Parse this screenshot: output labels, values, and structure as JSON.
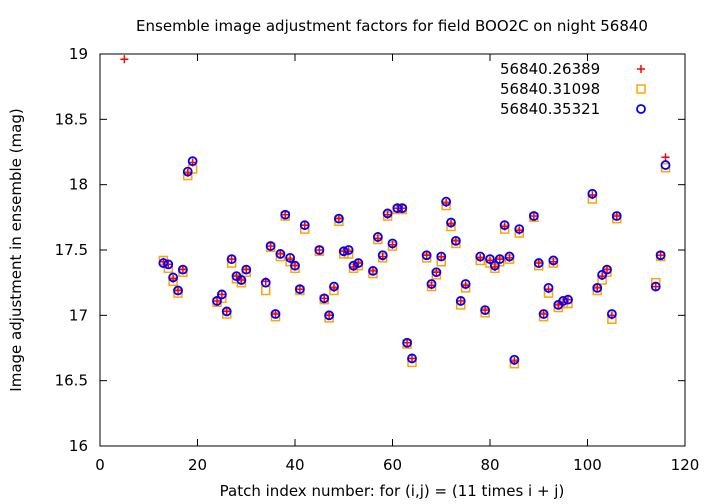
{
  "chart_data": {
    "type": "scatter",
    "title": "Ensemble image adjustment factors for field BOO2C on night 56840",
    "xlabel": "Patch index number: for (i,j) =  (11 times i + j)",
    "ylabel": "Image adjustment in ensemble (mag)",
    "xlim": [
      0,
      120
    ],
    "ylim": [
      16,
      19
    ],
    "x_ticks": [
      0,
      20,
      40,
      60,
      80,
      100,
      120
    ],
    "x_tick_labels": [
      "0",
      "20",
      "40",
      "60",
      "80",
      "100",
      "120"
    ],
    "y_ticks": [
      16,
      16.5,
      17,
      17.5,
      18,
      18.5,
      19
    ],
    "y_tick_labels": [
      "16",
      "16.5",
      "17",
      "17.5",
      "18",
      "18.5",
      "19"
    ],
    "grid": false,
    "legend_position": "top-right",
    "series": [
      {
        "name": "56840.26389",
        "marker": "plus",
        "color": "#ff0000",
        "points": [
          [
            5,
            18.96
          ],
          [
            13,
            17.41
          ],
          [
            14,
            17.39
          ],
          [
            15,
            17.28
          ],
          [
            16,
            17.19
          ],
          [
            17,
            17.35
          ],
          [
            18,
            18.09
          ],
          [
            19,
            18.17
          ],
          [
            24,
            17.11
          ],
          [
            25,
            17.16
          ],
          [
            26,
            17.03
          ],
          [
            27,
            17.43
          ],
          [
            28,
            17.3
          ],
          [
            29,
            17.27
          ],
          [
            30,
            17.35
          ],
          [
            34,
            17.26
          ],
          [
            35,
            17.53
          ],
          [
            36,
            17.01
          ],
          [
            37,
            17.47
          ],
          [
            38,
            17.77
          ],
          [
            39,
            17.43
          ],
          [
            40,
            17.38
          ],
          [
            41,
            17.2
          ],
          [
            42,
            17.69
          ],
          [
            45,
            17.5
          ],
          [
            46,
            17.13
          ],
          [
            47,
            17.0
          ],
          [
            48,
            17.21
          ],
          [
            49,
            17.74
          ],
          [
            50,
            17.49
          ],
          [
            51,
            17.49
          ],
          [
            52,
            17.37
          ],
          [
            53,
            17.4
          ],
          [
            56,
            17.34
          ],
          [
            57,
            17.59
          ],
          [
            58,
            17.45
          ],
          [
            59,
            17.77
          ],
          [
            60,
            17.54
          ],
          [
            61,
            17.82
          ],
          [
            62,
            17.82
          ],
          [
            63,
            16.79
          ],
          [
            64,
            16.67
          ],
          [
            67,
            17.46
          ],
          [
            68,
            17.23
          ],
          [
            69,
            17.33
          ],
          [
            70,
            17.45
          ],
          [
            71,
            17.86
          ],
          [
            72,
            17.7
          ],
          [
            73,
            17.57
          ],
          [
            74,
            17.11
          ],
          [
            75,
            17.23
          ],
          [
            78,
            17.44
          ],
          [
            79,
            17.04
          ],
          [
            80,
            17.42
          ],
          [
            81,
            17.37
          ],
          [
            82,
            17.43
          ],
          [
            83,
            17.68
          ],
          [
            84,
            17.44
          ],
          [
            85,
            16.65
          ],
          [
            86,
            17.65
          ],
          [
            89,
            17.76
          ],
          [
            90,
            17.4
          ],
          [
            91,
            17.01
          ],
          [
            92,
            17.2
          ],
          [
            93,
            17.41
          ],
          [
            94,
            17.08
          ],
          [
            95,
            17.1
          ],
          [
            96,
            17.12
          ],
          [
            101,
            17.92
          ],
          [
            102,
            17.21
          ],
          [
            103,
            17.3
          ],
          [
            104,
            17.35
          ],
          [
            105,
            17.0
          ],
          [
            106,
            17.76
          ],
          [
            114,
            17.22
          ],
          [
            115,
            17.46
          ],
          [
            116,
            18.21
          ]
        ]
      },
      {
        "name": "56840.31098",
        "marker": "square",
        "color": "#ffa500",
        "points": [
          [
            13,
            17.42
          ],
          [
            14,
            17.36
          ],
          [
            15,
            17.26
          ],
          [
            16,
            17.17
          ],
          [
            17,
            17.33
          ],
          [
            18,
            18.07
          ],
          [
            19,
            18.12
          ],
          [
            24,
            17.1
          ],
          [
            25,
            17.13
          ],
          [
            26,
            17.01
          ],
          [
            27,
            17.4
          ],
          [
            28,
            17.28
          ],
          [
            29,
            17.25
          ],
          [
            30,
            17.33
          ],
          [
            34,
            17.19
          ],
          [
            35,
            17.52
          ],
          [
            36,
            16.99
          ],
          [
            37,
            17.45
          ],
          [
            38,
            17.76
          ],
          [
            39,
            17.41
          ],
          [
            40,
            17.36
          ],
          [
            41,
            17.19
          ],
          [
            42,
            17.66
          ],
          [
            45,
            17.49
          ],
          [
            46,
            17.12
          ],
          [
            47,
            16.98
          ],
          [
            48,
            17.19
          ],
          [
            49,
            17.72
          ],
          [
            50,
            17.47
          ],
          [
            51,
            17.47
          ],
          [
            52,
            17.36
          ],
          [
            53,
            17.38
          ],
          [
            56,
            17.32
          ],
          [
            57,
            17.58
          ],
          [
            58,
            17.44
          ],
          [
            59,
            17.76
          ],
          [
            60,
            17.53
          ],
          [
            61,
            17.81
          ],
          [
            62,
            17.81
          ],
          [
            63,
            16.78
          ],
          [
            64,
            16.64
          ],
          [
            67,
            17.44
          ],
          [
            68,
            17.22
          ],
          [
            69,
            17.31
          ],
          [
            70,
            17.41
          ],
          [
            71,
            17.84
          ],
          [
            72,
            17.68
          ],
          [
            73,
            17.55
          ],
          [
            74,
            17.08
          ],
          [
            75,
            17.21
          ],
          [
            78,
            17.42
          ],
          [
            79,
            17.02
          ],
          [
            80,
            17.4
          ],
          [
            81,
            17.36
          ],
          [
            82,
            17.41
          ],
          [
            83,
            17.66
          ],
          [
            84,
            17.43
          ],
          [
            85,
            16.63
          ],
          [
            86,
            17.63
          ],
          [
            89,
            17.75
          ],
          [
            90,
            17.38
          ],
          [
            91,
            16.99
          ],
          [
            92,
            17.17
          ],
          [
            93,
            17.4
          ],
          [
            94,
            17.06
          ],
          [
            95,
            17.09
          ],
          [
            96,
            17.09
          ],
          [
            101,
            17.89
          ],
          [
            102,
            17.19
          ],
          [
            103,
            17.27
          ],
          [
            104,
            17.33
          ],
          [
            105,
            16.97
          ],
          [
            106,
            17.74
          ],
          [
            114,
            17.25
          ],
          [
            115,
            17.45
          ],
          [
            116,
            18.13
          ]
        ]
      },
      {
        "name": "56840.35321",
        "marker": "circle",
        "color": "#0000ff",
        "points": [
          [
            13,
            17.4
          ],
          [
            14,
            17.39
          ],
          [
            15,
            17.29
          ],
          [
            16,
            17.19
          ],
          [
            17,
            17.35
          ],
          [
            18,
            18.1
          ],
          [
            19,
            18.18
          ],
          [
            24,
            17.11
          ],
          [
            25,
            17.16
          ],
          [
            26,
            17.03
          ],
          [
            27,
            17.43
          ],
          [
            28,
            17.3
          ],
          [
            29,
            17.27
          ],
          [
            30,
            17.35
          ],
          [
            34,
            17.25
          ],
          [
            35,
            17.53
          ],
          [
            36,
            17.01
          ],
          [
            37,
            17.47
          ],
          [
            38,
            17.77
          ],
          [
            39,
            17.44
          ],
          [
            40,
            17.38
          ],
          [
            41,
            17.2
          ],
          [
            42,
            17.69
          ],
          [
            45,
            17.5
          ],
          [
            46,
            17.13
          ],
          [
            47,
            17.0
          ],
          [
            48,
            17.22
          ],
          [
            49,
            17.74
          ],
          [
            50,
            17.49
          ],
          [
            51,
            17.5
          ],
          [
            52,
            17.38
          ],
          [
            53,
            17.4
          ],
          [
            56,
            17.34
          ],
          [
            57,
            17.6
          ],
          [
            58,
            17.46
          ],
          [
            59,
            17.78
          ],
          [
            60,
            17.55
          ],
          [
            61,
            17.82
          ],
          [
            62,
            17.82
          ],
          [
            63,
            16.79
          ],
          [
            64,
            16.67
          ],
          [
            67,
            17.46
          ],
          [
            68,
            17.24
          ],
          [
            69,
            17.33
          ],
          [
            70,
            17.45
          ],
          [
            71,
            17.87
          ],
          [
            72,
            17.71
          ],
          [
            73,
            17.57
          ],
          [
            74,
            17.11
          ],
          [
            75,
            17.24
          ],
          [
            78,
            17.45
          ],
          [
            79,
            17.04
          ],
          [
            80,
            17.43
          ],
          [
            81,
            17.38
          ],
          [
            82,
            17.43
          ],
          [
            83,
            17.69
          ],
          [
            84,
            17.45
          ],
          [
            85,
            16.66
          ],
          [
            86,
            17.66
          ],
          [
            89,
            17.76
          ],
          [
            90,
            17.4
          ],
          [
            91,
            17.01
          ],
          [
            92,
            17.21
          ],
          [
            93,
            17.42
          ],
          [
            94,
            17.08
          ],
          [
            95,
            17.11
          ],
          [
            96,
            17.12
          ],
          [
            101,
            17.93
          ],
          [
            102,
            17.21
          ],
          [
            103,
            17.31
          ],
          [
            104,
            17.35
          ],
          [
            105,
            17.01
          ],
          [
            106,
            17.76
          ],
          [
            114,
            17.22
          ],
          [
            115,
            17.46
          ],
          [
            116,
            18.15
          ]
        ]
      }
    ]
  }
}
